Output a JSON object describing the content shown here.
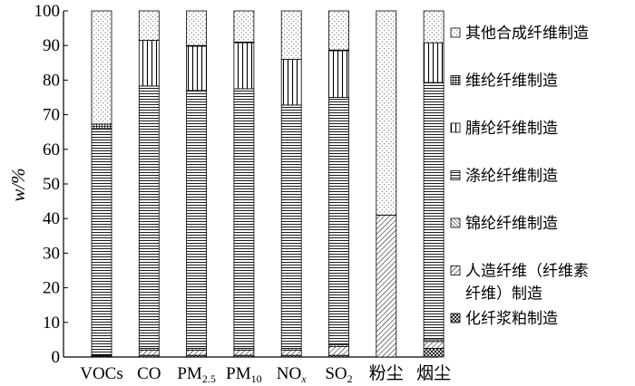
{
  "chart_data": {
    "type": "bar",
    "stacked": true,
    "ylabel": "w/%",
    "ylim": [
      0,
      100
    ],
    "yticks": [
      0,
      10,
      20,
      30,
      40,
      50,
      60,
      70,
      80,
      90,
      100
    ],
    "categories": [
      "VOCs",
      "CO",
      "PM2.5",
      "PM10",
      "NOx",
      "SO2",
      "粉尘",
      "烟尘"
    ],
    "category_labels": [
      {
        "base": "VOCs",
        "sub": ""
      },
      {
        "base": "CO",
        "sub": ""
      },
      {
        "base": "PM",
        "sub": "2.5"
      },
      {
        "base": "PM",
        "sub": "10"
      },
      {
        "base": "NO",
        "sub": "x"
      },
      {
        "base": "SO",
        "sub": "2"
      },
      {
        "base": "粉尘",
        "sub": ""
      },
      {
        "base": "烟尘",
        "sub": ""
      }
    ],
    "legend_position": "right",
    "series": [
      {
        "name": "化纤浆粕制造",
        "pattern": "crosshatch",
        "values": [
          0.3,
          0.5,
          0.5,
          0.5,
          0.5,
          0.5,
          0.0,
          2.5
        ]
      },
      {
        "name": "人造纤维（纤维素纤维）制造",
        "pattern": "diagonal",
        "values": [
          0.2,
          1.5,
          1.5,
          1.5,
          1.5,
          2.5,
          41.0,
          2.0
        ]
      },
      {
        "name": "锦纶纤维制造",
        "pattern": "dense-diagonal",
        "values": [
          0.2,
          0.5,
          0.5,
          0.5,
          0.5,
          0.5,
          0.0,
          0.5
        ]
      },
      {
        "name": "涤纶纤维制造",
        "pattern": "horizontal",
        "values": [
          65.3,
          75.8,
          74.5,
          75.0,
          70.3,
          71.5,
          0.0,
          74.3
        ]
      },
      {
        "name": "腈纶纤维制造",
        "pattern": "vertical",
        "values": [
          0.0,
          13.2,
          12.8,
          13.3,
          13.2,
          13.5,
          0.0,
          11.5
        ]
      },
      {
        "name": "维纶纤维制造",
        "pattern": "small-grid",
        "values": [
          1.3,
          0.0,
          0.2,
          0.2,
          0.0,
          0.2,
          0.0,
          0.0
        ]
      },
      {
        "name": "其他合成纤维制造",
        "pattern": "dots",
        "values": [
          32.7,
          8.5,
          10.0,
          9.0,
          14.0,
          11.3,
          59.0,
          9.2
        ]
      }
    ],
    "legend_order": [
      "其他合成纤维制造",
      "维纶纤维制造",
      "腈纶纤维制造",
      "涤纶纤维制造",
      "锦纶纤维制造",
      "人造纤维（纤维素纤维）制造",
      "化纤浆粕制造"
    ],
    "legend_lines": {
      "人造纤维（纤维素纤维）制造": [
        "人造纤维（纤维素",
        "纤维）制造"
      ]
    }
  }
}
